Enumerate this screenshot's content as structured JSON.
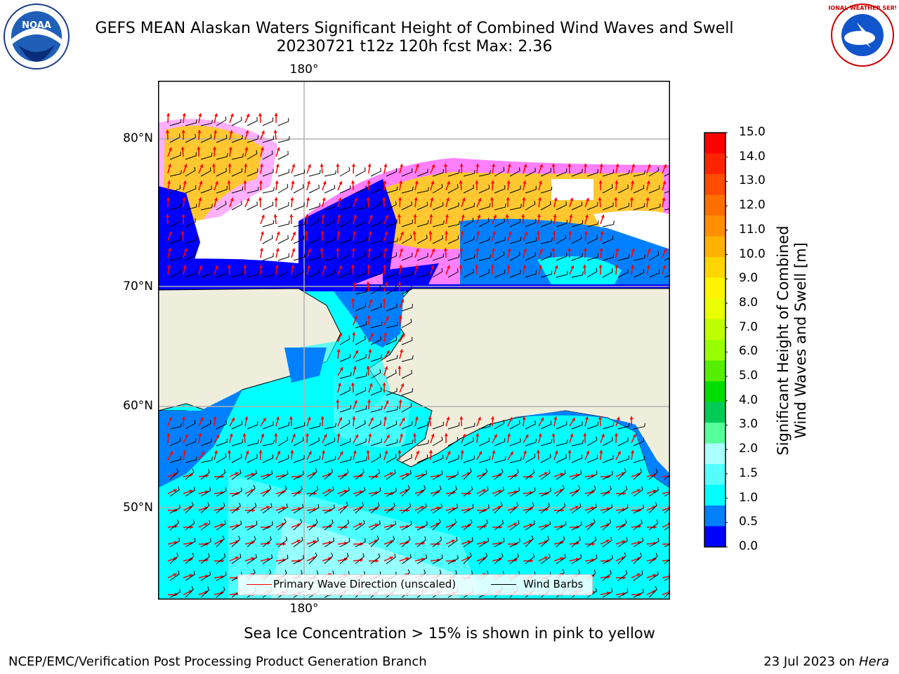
{
  "header": {
    "title_line1": "GEFS MEAN Alaskan Waters Significant Height of Combined Wind Waves and Swell",
    "title_line2": "20230721 t12z 120h fcst   Max: 2.36"
  },
  "logos": {
    "left": {
      "name": "noaa-logo",
      "text": "NOAA"
    },
    "right": {
      "name": "nws-logo",
      "text": "NATIONAL WEATHER SERVICE"
    }
  },
  "map": {
    "region": "Alaskan Waters",
    "lon_labels": {
      "top": "180°",
      "bottom": "180°"
    },
    "lat_labels": [
      "80°N",
      "70°N",
      "60°N",
      "50°N"
    ],
    "land_color": "#efeedc",
    "gridline_color": "#b0b0b0",
    "wave_arrow_color": "#ff0000",
    "barb_color": "#000000"
  },
  "legend": {
    "items": [
      {
        "label": "Primary Wave Direction (unscaled)",
        "color": "#ff0000"
      },
      {
        "label": "Wind Barbs",
        "color": "#000000"
      }
    ]
  },
  "colorbar": {
    "label_line1": "Significant Height of Combined",
    "label_line2": "Wind Waves and Swell [m]",
    "ticks": [
      "15.0",
      "14.0",
      "13.0",
      "12.0",
      "11.0",
      "10.0",
      "9.0",
      "8.0",
      "7.0",
      "6.0",
      "5.0",
      "4.0",
      "3.0",
      "2.0",
      "1.5",
      "1.0",
      "0.5",
      "0.0"
    ],
    "colors_top_to_bottom": [
      "#ff0000",
      "#ff2400",
      "#ff4c00",
      "#ff6f00",
      "#ff8f00",
      "#ffb100",
      "#ffd500",
      "#fff400",
      "#eaff00",
      "#bfff00",
      "#99ff00",
      "#55ee00",
      "#00dd00",
      "#00cc55",
      "#55ff99",
      "#aaffff",
      "#55ffff",
      "#00ffff",
      "#0080ff",
      "#0000ff"
    ]
  },
  "footer": {
    "note": "Sea Ice Concentration > 15% is shown in pink to yellow",
    "credit": "NCEP/EMC/Verification Post Processing Product Generation Branch",
    "date_prefix": "23 Jul 2023 on ",
    "host": "Hera"
  }
}
